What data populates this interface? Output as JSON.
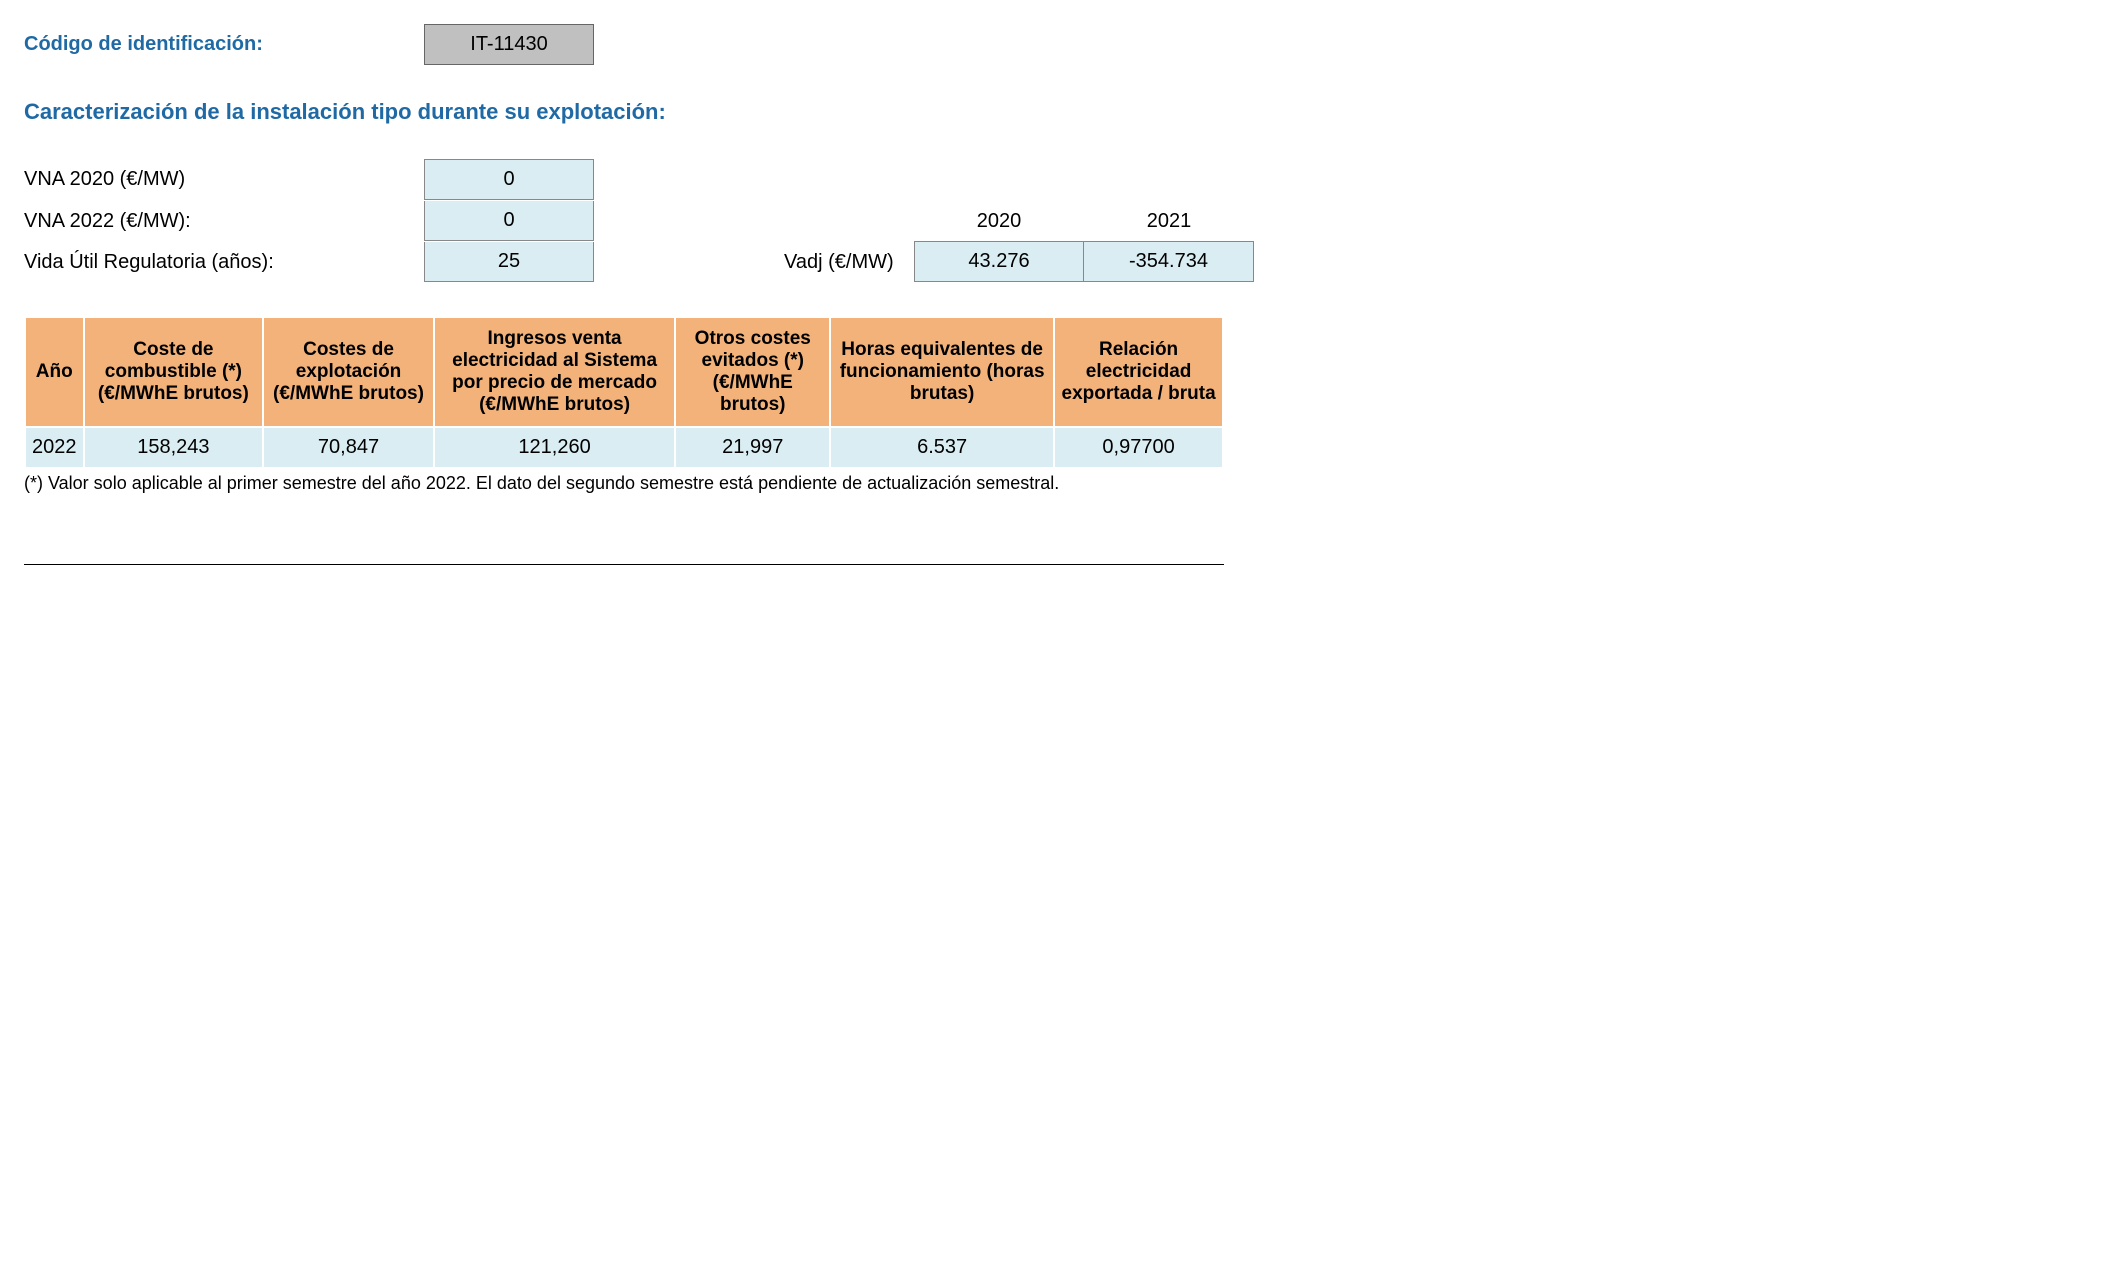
{
  "id_section": {
    "label": "Código de identificación:",
    "code": "IT-11430"
  },
  "char_section": {
    "title": "Caracterización de la instalación tipo durante su explotación:",
    "params": [
      {
        "label": "VNA 2020 (€/MW)",
        "value": "0"
      },
      {
        "label": "VNA 2022 (€/MW):",
        "value": "0"
      },
      {
        "label": "Vida Útil Regulatoria (años):",
        "value": "25"
      }
    ],
    "vadj": {
      "label": "Vadj (€/MW)",
      "years": [
        "2020",
        "2021"
      ],
      "values": [
        "43.276",
        "-354.734"
      ]
    }
  },
  "table": {
    "headers": [
      "Año",
      "Coste de combustible (*) (€/MWhE brutos)",
      "Costes de explotación (€/MWhE brutos)",
      "Ingresos venta electricidad al Sistema por precio de mercado (€/MWhE brutos)",
      "Otros costes evitados (*) (€/MWhE brutos)",
      "Horas equivalentes de funcionamiento (horas brutas)",
      "Relación electricidad exportada / bruta"
    ],
    "row": [
      "2022",
      "158,243",
      "70,847",
      "121,260",
      "21,997",
      "6.537",
      "0,97700"
    ]
  },
  "footnote": "(*) Valor solo aplicable al primer semestre del año 2022. El dato del segundo semestre está pendiente de actualización semestral."
}
